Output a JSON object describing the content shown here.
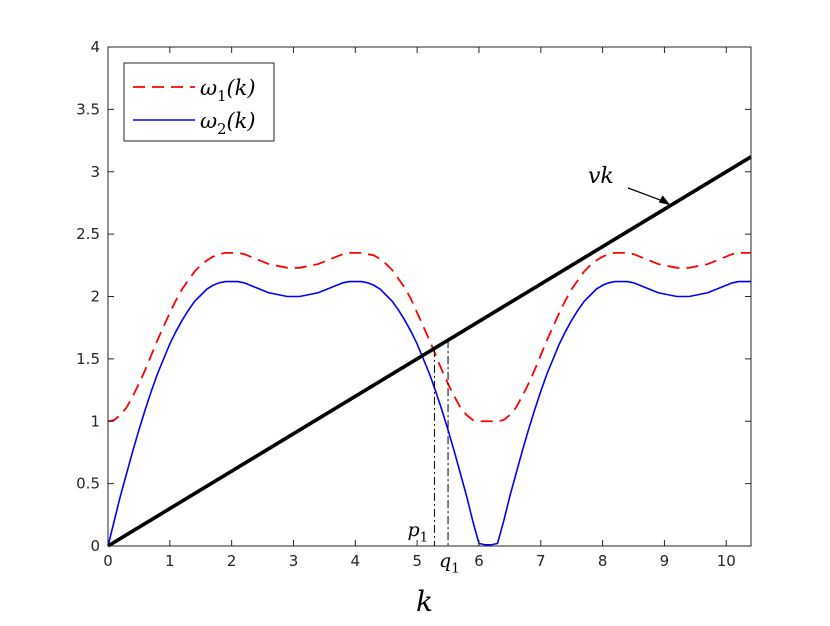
{
  "chart_data": {
    "type": "line",
    "xlabel": "k",
    "ylabel": "",
    "title": "",
    "xlim": [
      0,
      10.4
    ],
    "ylim": [
      0,
      4
    ],
    "xticks": [
      0,
      1,
      2,
      3,
      4,
      5,
      6,
      7,
      8,
      9,
      10
    ],
    "yticks": [
      0,
      0.5,
      1,
      1.5,
      2,
      2.5,
      3,
      3.5,
      4
    ],
    "xtick_labels": [
      "0",
      "1",
      "2",
      "3",
      "4",
      "5",
      "6",
      "7",
      "8",
      "9",
      "10"
    ],
    "ytick_labels": [
      "0",
      "0.5",
      "1",
      "1.5",
      "2",
      "2.5",
      "3",
      "3.5",
      "4"
    ],
    "grid": false,
    "legend": "top-left",
    "series": [
      {
        "name": "ω1(k)",
        "legend_label": "ω₁(k)",
        "style": "dashed",
        "color": "#ff0000",
        "x": [
          0,
          0.1,
          0.2,
          0.3,
          0.4,
          0.5,
          0.6,
          0.7,
          0.8,
          0.9,
          1.0,
          1.1,
          1.2,
          1.3,
          1.4,
          1.5,
          1.6,
          1.7,
          1.8,
          1.9,
          2.0,
          2.1,
          2.2,
          2.3,
          2.4,
          2.5,
          2.6,
          2.7,
          2.8,
          2.9,
          3.0,
          3.1,
          3.2,
          3.3,
          3.4,
          3.5,
          3.6,
          3.7,
          3.8,
          3.9,
          4.0,
          4.1,
          4.2,
          4.3,
          4.4,
          4.5,
          4.6,
          4.7,
          4.8,
          4.9,
          5.0,
          5.1,
          5.2,
          5.3,
          5.4,
          5.5,
          5.6,
          5.7,
          5.8,
          5.9,
          6.0,
          6.1,
          6.2,
          6.3,
          6.4,
          6.5,
          6.6,
          6.7,
          6.8,
          6.9,
          7.0,
          7.1,
          7.2,
          7.3,
          7.4,
          7.5,
          7.6,
          7.7,
          7.8,
          7.9,
          8.0,
          8.1,
          8.2,
          8.3,
          8.4,
          8.5,
          8.6,
          8.7,
          8.8,
          8.9,
          9.0,
          9.1,
          9.2,
          9.3,
          9.4,
          9.5,
          9.6,
          9.7,
          9.8,
          9.9,
          10.0,
          10.1,
          10.2,
          10.3,
          10.4
        ],
        "y": [
          1.0,
          1.01,
          1.05,
          1.11,
          1.2,
          1.3,
          1.41,
          1.53,
          1.65,
          1.76,
          1.87,
          1.97,
          2.06,
          2.13,
          2.2,
          2.25,
          2.29,
          2.32,
          2.34,
          2.35,
          2.35,
          2.35,
          2.34,
          2.32,
          2.3,
          2.28,
          2.26,
          2.25,
          2.24,
          2.23,
          2.23,
          2.23,
          2.24,
          2.25,
          2.26,
          2.28,
          2.3,
          2.32,
          2.34,
          2.35,
          2.35,
          2.35,
          2.34,
          2.33,
          2.3,
          2.26,
          2.21,
          2.14,
          2.07,
          1.98,
          1.87,
          1.76,
          1.65,
          1.53,
          1.41,
          1.3,
          1.2,
          1.11,
          1.05,
          1.01,
          1.0,
          1.0,
          1.0,
          1.0,
          1.01,
          1.05,
          1.11,
          1.2,
          1.3,
          1.41,
          1.53,
          1.65,
          1.76,
          1.87,
          1.97,
          2.06,
          2.13,
          2.2,
          2.25,
          2.29,
          2.32,
          2.34,
          2.35,
          2.35,
          2.35,
          2.34,
          2.32,
          2.3,
          2.28,
          2.26,
          2.25,
          2.24,
          2.23,
          2.23,
          2.23,
          2.24,
          2.25,
          2.26,
          2.28,
          2.3,
          2.32,
          2.34,
          2.35,
          2.35,
          2.35
        ]
      },
      {
        "name": "ω2(k)",
        "legend_label": "ω₂(k)",
        "style": "solid",
        "color": "#0000ff",
        "x": [
          0,
          0.1,
          0.2,
          0.3,
          0.4,
          0.5,
          0.6,
          0.7,
          0.8,
          0.9,
          1.0,
          1.1,
          1.2,
          1.3,
          1.4,
          1.5,
          1.6,
          1.7,
          1.8,
          1.9,
          2.0,
          2.1,
          2.2,
          2.3,
          2.4,
          2.5,
          2.6,
          2.7,
          2.8,
          2.9,
          3.0,
          3.1,
          3.2,
          3.3,
          3.4,
          3.5,
          3.6,
          3.7,
          3.8,
          3.9,
          4.0,
          4.1,
          4.2,
          4.3,
          4.4,
          4.5,
          4.6,
          4.7,
          4.8,
          4.9,
          5.0,
          5.1,
          5.2,
          5.3,
          5.4,
          5.5,
          5.6,
          5.7,
          5.8,
          5.9,
          6.0,
          6.1,
          6.2,
          6.3,
          6.4,
          6.5,
          6.6,
          6.7,
          6.8,
          6.9,
          7.0,
          7.1,
          7.2,
          7.3,
          7.4,
          7.5,
          7.6,
          7.7,
          7.8,
          7.9,
          8.0,
          8.1,
          8.2,
          8.3,
          8.4,
          8.5,
          8.6,
          8.7,
          8.8,
          8.9,
          9.0,
          9.1,
          9.2,
          9.3,
          9.4,
          9.5,
          9.6,
          9.7,
          9.8,
          9.9,
          10.0,
          10.1,
          10.2,
          10.3,
          10.4
        ],
        "y": [
          0,
          0.2,
          0.4,
          0.58,
          0.76,
          0.93,
          1.09,
          1.24,
          1.38,
          1.5,
          1.62,
          1.72,
          1.81,
          1.89,
          1.96,
          2.01,
          2.06,
          2.09,
          2.11,
          2.12,
          2.12,
          2.12,
          2.11,
          2.09,
          2.07,
          2.05,
          2.03,
          2.02,
          2.01,
          2.0,
          2.0,
          2.0,
          2.01,
          2.02,
          2.03,
          2.05,
          2.07,
          2.09,
          2.11,
          2.12,
          2.12,
          2.12,
          2.11,
          2.09,
          2.06,
          2.01,
          1.96,
          1.89,
          1.81,
          1.72,
          1.62,
          1.5,
          1.38,
          1.24,
          1.09,
          0.93,
          0.76,
          0.58,
          0.4,
          0.2,
          0.02,
          0.01,
          0.01,
          0.02,
          0.2,
          0.4,
          0.58,
          0.76,
          0.93,
          1.09,
          1.24,
          1.38,
          1.5,
          1.62,
          1.72,
          1.81,
          1.89,
          1.96,
          2.01,
          2.06,
          2.09,
          2.11,
          2.12,
          2.12,
          2.12,
          2.11,
          2.09,
          2.07,
          2.05,
          2.03,
          2.02,
          2.01,
          2.0,
          2.0,
          2.0,
          2.01,
          2.02,
          2.03,
          2.05,
          2.07,
          2.09,
          2.11,
          2.12,
          2.12,
          2.12
        ]
      },
      {
        "name": "vk",
        "style": "solid",
        "color": "#000000",
        "x": [
          0,
          10.4
        ],
        "y": [
          0,
          3.12
        ]
      }
    ],
    "annotations": [
      {
        "label": "vk",
        "arrow_to": {
          "x": 9.1,
          "y": 2.73
        }
      },
      {
        "label": "p1",
        "x": 5.28,
        "y": 1.58,
        "dropline": "dash-dot"
      },
      {
        "label": "q1",
        "x": 5.5,
        "y": 1.65,
        "dropline": "dash-dot"
      }
    ]
  }
}
